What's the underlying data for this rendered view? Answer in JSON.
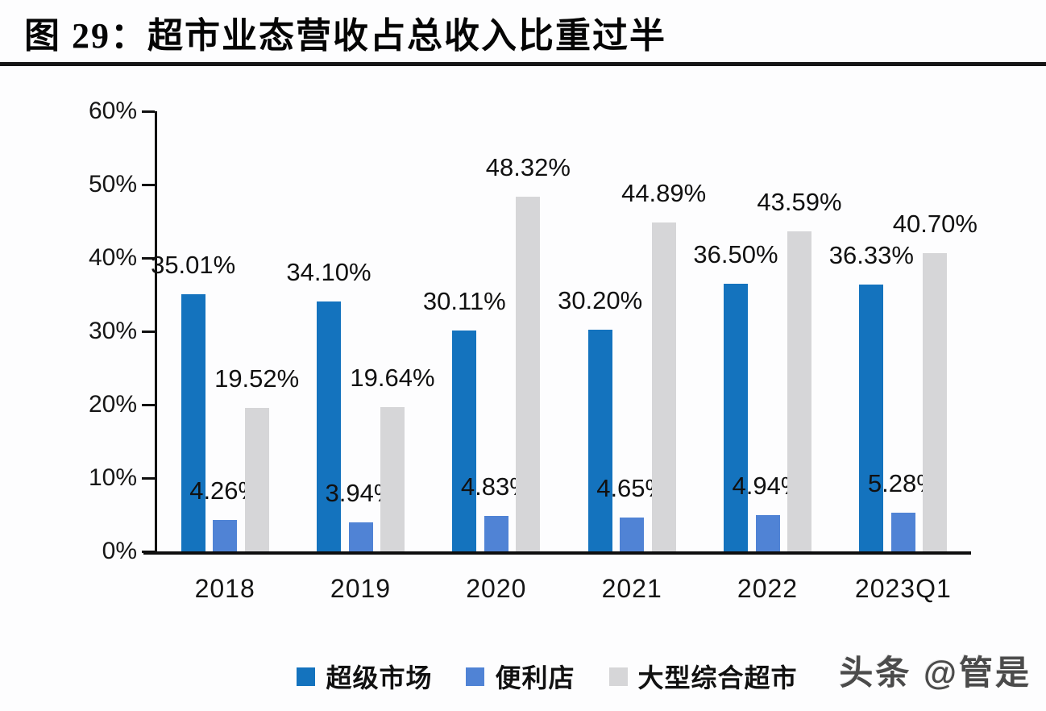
{
  "page": {
    "title": "图 29：超市业态营收占总收入比重过半",
    "watermark": "头条 @管是"
  },
  "colors": {
    "series1_blue": "#1473BE",
    "series2_light_blue": "#5083D5",
    "series3_gray": "#D6D6D8",
    "axis": "#0f0f0f",
    "text": "#1a1a1a"
  },
  "chart_data": {
    "type": "bar",
    "title": "超市业态营收占总收入比重过半",
    "categories": [
      "2018",
      "2019",
      "2020",
      "2021",
      "2022",
      "2023Q1"
    ],
    "series": [
      {
        "name": "超级市场",
        "color": "#1473BE",
        "values": [
          35.01,
          34.1,
          30.11,
          30.2,
          36.5,
          36.33
        ],
        "labels": [
          "35.01%",
          "34.10%",
          "30.11%",
          "30.20%",
          "36.50%",
          "36.33%"
        ]
      },
      {
        "name": "便利店",
        "color": "#5083D5",
        "values": [
          4.26,
          3.94,
          4.83,
          4.65,
          4.94,
          5.28
        ],
        "labels": [
          "4.26%",
          "3.94%",
          "4.83%",
          "4.65%",
          "4.94%",
          "5.28%"
        ]
      },
      {
        "name": "大型综合超市",
        "color": "#D6D6D8",
        "values": [
          19.52,
          19.64,
          48.32,
          44.89,
          43.59,
          40.7
        ],
        "labels": [
          "19.52%",
          "19.64%",
          "48.32%",
          "44.89%",
          "43.59%",
          "40.70%"
        ]
      }
    ],
    "y_axis": {
      "ticks": [
        "60%",
        "50%",
        "40%",
        "30%",
        "20%",
        "10%",
        "0%"
      ],
      "min": 0,
      "max": 60,
      "step": 10,
      "unit": "%"
    },
    "xlabel": "",
    "ylabel": "",
    "grid": false,
    "legend_position": "bottom",
    "data_labels": true
  }
}
